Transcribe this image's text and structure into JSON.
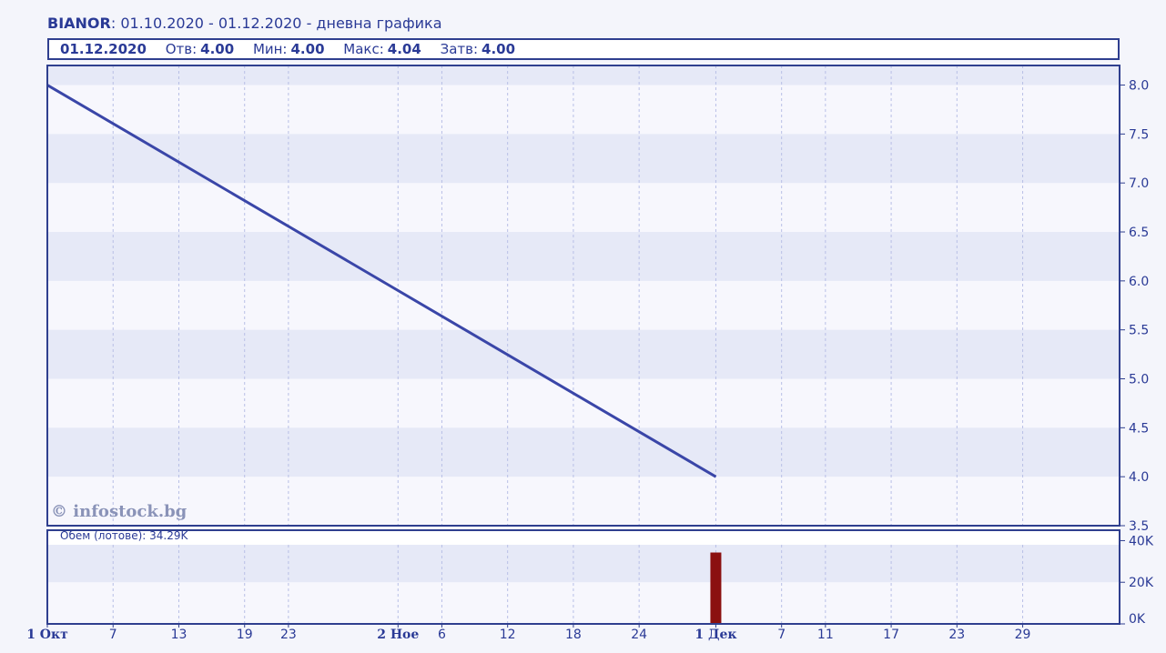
{
  "header": {
    "ticker": "BIANOR",
    "subtitle": ": 01.10.2020 - 01.12.2020 - дневна графика"
  },
  "ohlc": {
    "date": "01.12.2020",
    "open_label": "Отв:",
    "open_value": "4.00",
    "min_label": "Мин:",
    "min_value": "4.00",
    "max_label": "Макс:",
    "max_value": "4.04",
    "close_label": "Затв:",
    "close_value": "4.00"
  },
  "watermark": "© infostock.bg",
  "volume_label": "Обем (лотове): 34.29K",
  "colors": {
    "line": "#3a46a8",
    "volume_bar": "#8b1010",
    "frame": "#2f3f8f",
    "text": "#2a3a96"
  },
  "chart_data": [
    {
      "type": "line",
      "series": [
        {
          "x": [
            "2020-10-01",
            "2020-12-01"
          ],
          "values": [
            8.0,
            4.0
          ]
        }
      ],
      "ylim": [
        3.5,
        8.2
      ],
      "yticks": [
        "3.5",
        "4.0",
        "4.5",
        "5.0",
        "5.5",
        "6.0",
        "6.5",
        "7.0",
        "7.5",
        "8.0"
      ],
      "xticks": [
        "1 Окт",
        "7",
        "13",
        "19",
        "23",
        "2 Ное",
        "6",
        "12",
        "18",
        "24",
        "1 Дек",
        "7",
        "11",
        "17",
        "23",
        "29"
      ],
      "grid": true
    },
    {
      "type": "bar",
      "categories": [
        "2020-12-01"
      ],
      "values": [
        34290
      ],
      "ylim": [
        0,
        45000
      ],
      "yticks": [
        "0K",
        "20K",
        "40K"
      ]
    }
  ]
}
